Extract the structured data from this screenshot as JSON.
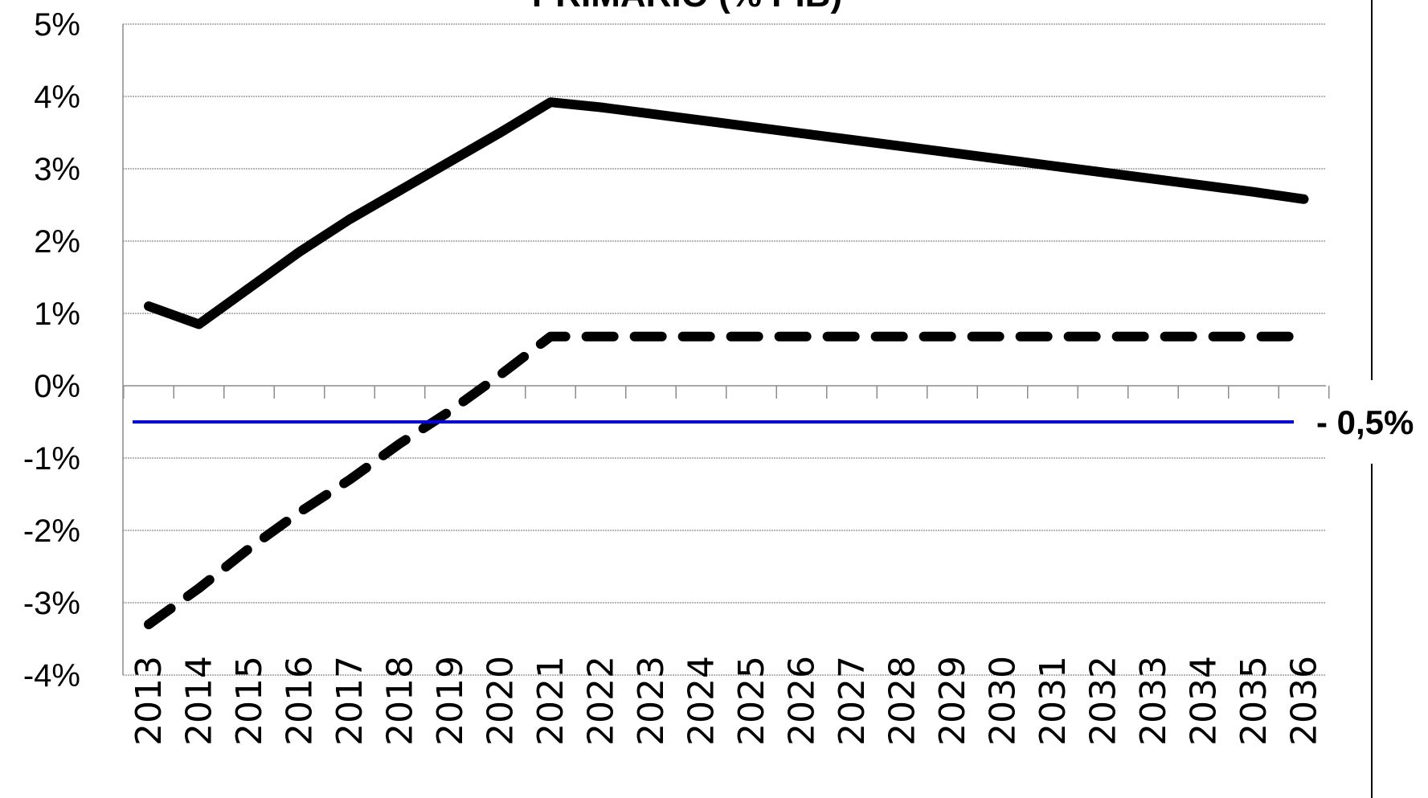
{
  "chart_data": {
    "type": "line",
    "title": "PRIMARIO (% PIB)",
    "xlabel": "",
    "ylabel": "",
    "ylim": [
      -4,
      5
    ],
    "ytick_values": [
      5,
      4,
      3,
      2,
      1,
      0,
      -1,
      -2,
      -3,
      -4
    ],
    "ytick_labels": [
      "5%",
      "4%",
      "3%",
      "2%",
      "1%",
      "0%",
      "-1%",
      "-2%",
      "-3%",
      "-4%"
    ],
    "categories": [
      "2013",
      "2014",
      "2015",
      "2016",
      "2017",
      "2018",
      "2019",
      "2020",
      "2021",
      "2022",
      "2023",
      "2024",
      "2025",
      "2026",
      "2027",
      "2028",
      "2029",
      "2030",
      "2031",
      "2032",
      "2033",
      "2034",
      "2035",
      "2036"
    ],
    "grid": true,
    "series": [
      {
        "style": "solid",
        "color": "#000000",
        "values": [
          1.1,
          0.85,
          1.35,
          1.85,
          2.3,
          2.7,
          3.1,
          3.5,
          3.92,
          3.85,
          3.76,
          3.67,
          3.58,
          3.49,
          3.4,
          3.31,
          3.22,
          3.13,
          3.04,
          2.95,
          2.86,
          2.77,
          2.68,
          2.58
        ]
      },
      {
        "style": "dashed",
        "color": "#000000",
        "values": [
          -3.3,
          -2.8,
          -2.25,
          -1.75,
          -1.3,
          -0.8,
          -0.35,
          0.15,
          0.68,
          0.68,
          0.68,
          0.68,
          0.68,
          0.68,
          0.68,
          0.68,
          0.68,
          0.68,
          0.68,
          0.68,
          0.68,
          0.68,
          0.68,
          0.68
        ]
      }
    ],
    "reference_line": {
      "value": -0.5,
      "color": "#0000ee",
      "label": "- 0,5%"
    }
  }
}
